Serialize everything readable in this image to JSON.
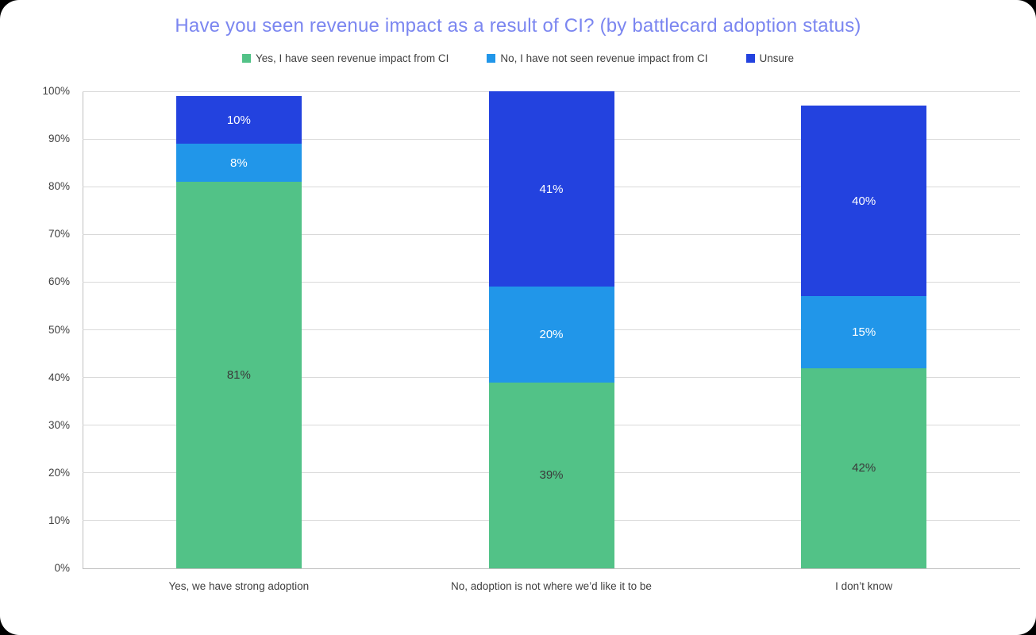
{
  "chart_data": {
    "type": "bar",
    "stacked": true,
    "title": "Have you seen revenue impact as a result of CI? (by battlecard adoption status)",
    "title_color": "#7B86F0",
    "legend_position": "top",
    "categories": [
      "Yes, we have strong adoption",
      "No, adoption is not where we’d like it to be",
      "I don’t know"
    ],
    "series": [
      {
        "name": "Yes, I have seen revenue impact from CI",
        "color": "#52C287",
        "label_color": "#3A3A3A",
        "values": [
          81,
          39,
          42
        ],
        "data_labels": [
          "81%",
          "39%",
          "42%"
        ]
      },
      {
        "name": "No, I have not seen revenue impact from CI",
        "color": "#2196E9",
        "label_color": "#FFFFFF",
        "values": [
          8,
          20,
          15
        ],
        "data_labels": [
          "8%",
          "20%",
          "15%"
        ]
      },
      {
        "name": "Unsure",
        "color": "#2342DF",
        "label_color": "#FFFFFF",
        "values": [
          10,
          41,
          40
        ],
        "data_labels": [
          "10%",
          "41%",
          "40%"
        ]
      }
    ],
    "y_axis": {
      "min": 0,
      "max": 100,
      "step": 10,
      "tick_labels": [
        "0%",
        "10%",
        "20%",
        "30%",
        "40%",
        "50%",
        "60%",
        "70%",
        "80%",
        "90%",
        "100%"
      ],
      "grid": true
    }
  }
}
